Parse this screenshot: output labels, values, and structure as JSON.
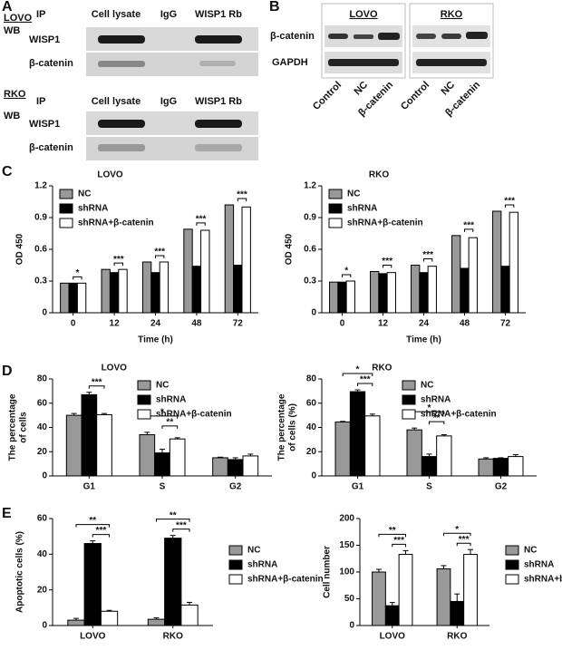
{
  "panel_labels": [
    "A",
    "B",
    "C",
    "D",
    "E"
  ],
  "blot_a": {
    "groups": [
      {
        "cell_line": "LOVO",
        "ip_label": "IP",
        "lanes": [
          "Cell lysate",
          "IgG",
          "WISP1 Rb"
        ],
        "wb_label": "WB",
        "rows": [
          "WISP1",
          "β-catenin"
        ]
      },
      {
        "cell_line": "RKO",
        "ip_label": "IP",
        "lanes": [
          "Cell lysate",
          "IgG",
          "WISP1 Rb"
        ],
        "wb_label": "WB",
        "rows": [
          "WISP1",
          "β-catenin"
        ]
      }
    ]
  },
  "blot_b": {
    "groups": [
      {
        "cell_line": "LOVO",
        "lanes": [
          "Control",
          "NC",
          "β-catenin"
        ]
      },
      {
        "cell_line": "RKO",
        "lanes": [
          "Control",
          "NC",
          "β-catenin"
        ]
      }
    ],
    "rows": [
      "β-catenin",
      "GAPDH"
    ]
  },
  "chart_data": [
    {
      "type": "bar",
      "title": "LOVO",
      "xlabel": "Time (h)",
      "ylabel": "OD 450",
      "categories": [
        "0",
        "12",
        "24",
        "48",
        "72"
      ],
      "ylim": [
        0,
        1.2
      ],
      "yticks": [
        0,
        0.3,
        0.6,
        0.9,
        1.2
      ],
      "legend": "upper left",
      "series": [
        {
          "name": "NC",
          "color": "#999999",
          "values": [
            0.28,
            0.41,
            0.48,
            0.79,
            1.02
          ]
        },
        {
          "name": "shRNA",
          "color": "#000000",
          "values": [
            0.28,
            0.38,
            0.38,
            0.44,
            0.45
          ]
        },
        {
          "name": "shRNA+β-catenin",
          "color": "#ffffff",
          "values": [
            0.28,
            0.41,
            0.48,
            0.78,
            1.0
          ]
        }
      ],
      "annotations": [
        [
          "*"
        ],
        [
          "***"
        ],
        [
          "***"
        ],
        [
          "***"
        ],
        [
          "***"
        ]
      ]
    },
    {
      "type": "bar",
      "title": "RKO",
      "xlabel": "Time (h)",
      "ylabel": "OD 450",
      "categories": [
        "0",
        "12",
        "24",
        "48",
        "72"
      ],
      "ylim": [
        0,
        1.2
      ],
      "yticks": [
        0,
        0.3,
        0.6,
        0.9,
        1.2
      ],
      "legend": "upper left",
      "series": [
        {
          "name": "NC",
          "color": "#999999",
          "values": [
            0.29,
            0.39,
            0.45,
            0.73,
            0.96
          ]
        },
        {
          "name": "shRNA",
          "color": "#000000",
          "values": [
            0.29,
            0.37,
            0.38,
            0.42,
            0.44
          ]
        },
        {
          "name": "shRNA+β-catenin",
          "color": "#ffffff",
          "values": [
            0.3,
            0.38,
            0.44,
            0.71,
            0.95
          ]
        }
      ],
      "annotations": [
        [
          "*"
        ],
        [
          "***"
        ],
        [
          "***"
        ],
        [
          "***"
        ],
        [
          "***"
        ]
      ]
    },
    {
      "type": "bar",
      "title": "LOVO",
      "ylabel": [
        "The percentage",
        "of cells"
      ],
      "categories": [
        "G1",
        "S",
        "G2"
      ],
      "ylim": [
        0,
        80
      ],
      "yticks": [
        0,
        20,
        40,
        60,
        80
      ],
      "legend": "upper right",
      "series": [
        {
          "name": "NC",
          "color": "#999999",
          "values": [
            50,
            34,
            15
          ],
          "errors": [
            1.5,
            2,
            0.5
          ]
        },
        {
          "name": "shRNA",
          "color": "#000000",
          "values": [
            67,
            19,
            13.5
          ],
          "errors": [
            2,
            3,
            1.5
          ]
        },
        {
          "name": "shRNA+β-catenin",
          "color": "#ffffff",
          "values": [
            50.5,
            30.5,
            16.5
          ],
          "errors": [
            1,
            1,
            1.5
          ]
        }
      ],
      "annotations": [
        [
          "***"
        ],
        [
          "*",
          "**"
        ],
        []
      ]
    },
    {
      "type": "bar",
      "title": "RKO",
      "ylabel": [
        "The percentage",
        "of cells (%)"
      ],
      "categories": [
        "G1",
        "S",
        "G2"
      ],
      "ylim": [
        0,
        80
      ],
      "yticks": [
        0,
        20,
        40,
        60,
        80
      ],
      "legend": "upper right",
      "series": [
        {
          "name": "NC",
          "color": "#999999",
          "values": [
            44.5,
            38,
            14
          ],
          "errors": [
            0.5,
            1.5,
            1
          ]
        },
        {
          "name": "shRNA",
          "color": "#000000",
          "values": [
            69.5,
            16,
            14.5
          ],
          "errors": [
            1.5,
            2,
            0.5
          ]
        },
        {
          "name": "shRNA+β-catenin",
          "color": "#ffffff",
          "values": [
            49.5,
            33,
            16
          ],
          "errors": [
            1.5,
            1,
            1.5
          ]
        }
      ],
      "annotations": [
        [
          "*",
          "***"
        ],
        [
          "*",
          "**"
        ],
        []
      ]
    },
    {
      "type": "bar",
      "ylabel": "Apoptotic cells (%)",
      "categories": [
        "LOVO",
        "RKO"
      ],
      "ylim": [
        0,
        60
      ],
      "yticks": [
        0,
        20,
        40,
        60
      ],
      "legend": "right",
      "series": [
        {
          "name": "NC",
          "color": "#999999",
          "values": [
            3,
            3.5
          ],
          "errors": [
            1,
            0.8
          ]
        },
        {
          "name": "shRNA",
          "color": "#000000",
          "values": [
            46,
            49
          ],
          "errors": [
            1.5,
            1.5
          ]
        },
        {
          "name": "shRNA+β-catenin",
          "color": "#ffffff",
          "values": [
            8,
            11.5
          ],
          "errors": [
            0.5,
            1.5
          ]
        }
      ],
      "annotations": [
        [
          "**",
          "***"
        ],
        [
          "**",
          "***"
        ]
      ]
    },
    {
      "type": "bar",
      "ylabel": "Cell number",
      "categories": [
        "LOVO",
        "RKO"
      ],
      "ylim": [
        0,
        200
      ],
      "yticks": [
        0,
        50,
        100,
        150,
        200
      ],
      "legend": "right",
      "series": [
        {
          "name": "NC",
          "color": "#999999",
          "values": [
            100,
            106
          ],
          "errors": [
            5,
            6
          ]
        },
        {
          "name": "shRNA",
          "color": "#000000",
          "values": [
            37,
            45
          ],
          "errors": [
            6,
            14
          ]
        },
        {
          "name": "shRNA+b-catenin",
          "color": "#ffffff",
          "values": [
            133,
            133
          ],
          "errors": [
            7,
            9
          ]
        }
      ],
      "annotations": [
        [
          "**",
          "***"
        ],
        [
          "*",
          "***"
        ]
      ]
    }
  ]
}
